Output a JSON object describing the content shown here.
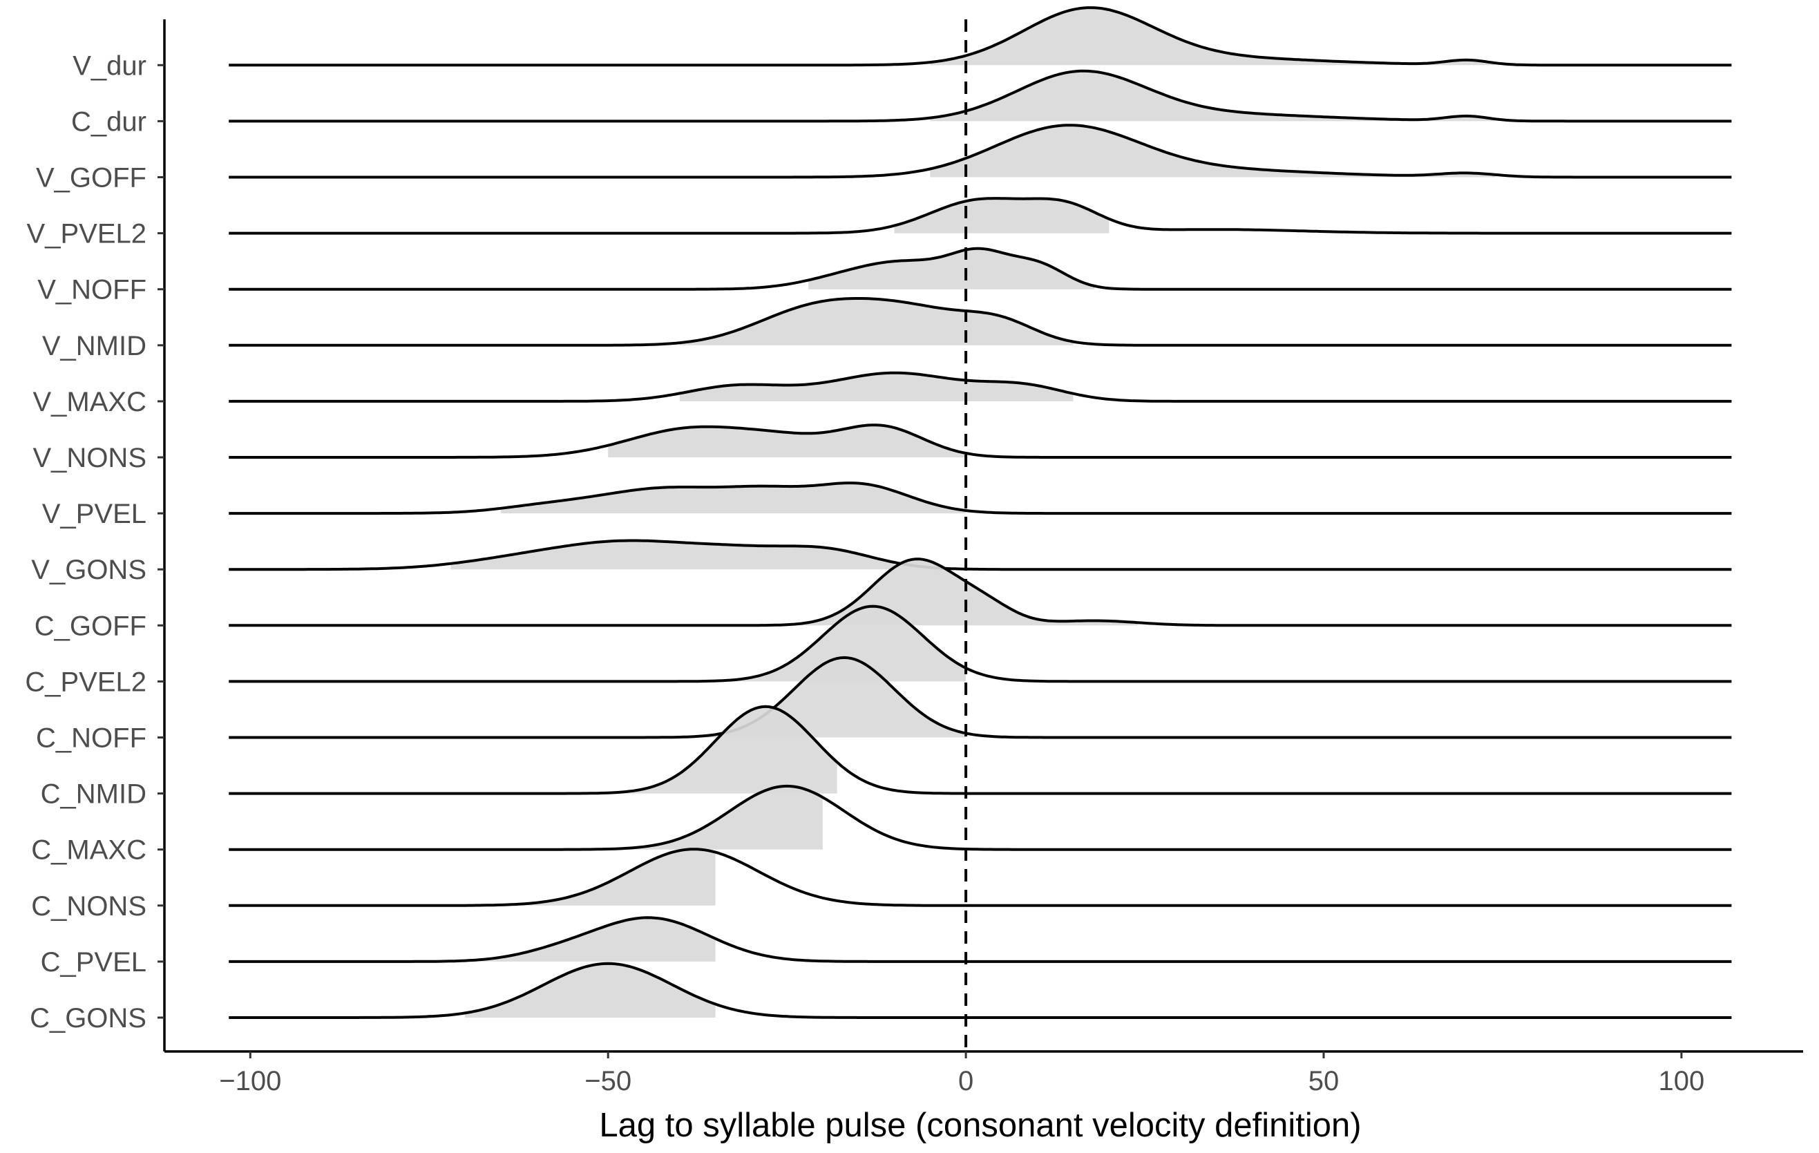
{
  "chart_data": {
    "type": "ridgeline",
    "title": "",
    "xlabel": "Lag to syllable pulse (consonant velocity definition)",
    "ylabel": "",
    "xlim": [
      -112,
      117
    ],
    "x_ticks": [
      -100,
      -50,
      0,
      50,
      100
    ],
    "x_tick_labels": [
      "−100",
      "−50",
      "0",
      "50",
      "100"
    ],
    "reference_line": {
      "x": 0,
      "style": "dashed"
    },
    "grid": false,
    "legend": "none",
    "fill_color": "#d9d9d9",
    "line_color": "#000000",
    "x_range": [
      -103,
      107
    ],
    "categories": [
      "C_GONS",
      "C_PVEL",
      "C_NONS",
      "C_MAXC",
      "C_NMID",
      "C_NOFF",
      "C_PVEL2",
      "C_GOFF",
      "V_GONS",
      "V_PVEL",
      "V_NONS",
      "V_MAXC",
      "V_NMID",
      "V_NOFF",
      "V_PVEL2",
      "V_GOFF",
      "C_dur",
      "V_dur"
    ],
    "series": [
      {
        "name": "C_GONS",
        "fill_range": [
          -70,
          -35
        ],
        "peaks": [
          [
            -50,
            1.15,
            9
          ]
        ]
      },
      {
        "name": "C_PVEL",
        "fill_range": [
          -68,
          -35
        ],
        "peaks": [
          [
            -44,
            0.92,
            8
          ],
          [
            -57,
            0.15,
            6
          ]
        ]
      },
      {
        "name": "C_NONS",
        "fill_range": [
          -62,
          -35
        ],
        "peaks": [
          [
            -38,
            1.2,
            9
          ]
        ]
      },
      {
        "name": "C_MAXC",
        "fill_range": [
          -52,
          -20
        ],
        "peaks": [
          [
            -25,
            1.35,
            8
          ]
        ]
      },
      {
        "name": "C_NMID",
        "fill_range": [
          -48,
          -18
        ],
        "peaks": [
          [
            -28,
            1.85,
            7
          ]
        ]
      },
      {
        "name": "C_NOFF",
        "fill_range": [
          -38,
          0
        ],
        "peaks": [
          [
            -17,
            1.7,
            7
          ]
        ]
      },
      {
        "name": "C_PVEL2",
        "fill_range": [
          -34,
          0
        ],
        "peaks": [
          [
            -13,
            1.6,
            7
          ]
        ]
      },
      {
        "name": "C_GOFF",
        "fill_range": [
          -28,
          24
        ],
        "peaks": [
          [
            -7,
            1.4,
            6
          ],
          [
            3,
            0.3,
            4
          ],
          [
            18,
            0.1,
            6
          ]
        ]
      },
      {
        "name": "V_GONS",
        "fill_range": [
          -72,
          -10
        ],
        "peaks": [
          [
            -47,
            0.6,
            12
          ],
          [
            -20,
            0.4,
            7
          ],
          [
            -32,
            0.15,
            6
          ],
          [
            -65,
            0.08,
            8
          ]
        ]
      },
      {
        "name": "V_PVEL",
        "fill_range": [
          -65,
          0
        ],
        "peaks": [
          [
            -41,
            0.55,
            11
          ],
          [
            -15,
            0.6,
            7
          ],
          [
            -28,
            0.2,
            5
          ],
          [
            -60,
            0.08,
            6
          ]
        ]
      },
      {
        "name": "V_NONS",
        "fill_range": [
          -50,
          0
        ],
        "peaks": [
          [
            -38,
            0.62,
            9
          ],
          [
            -12,
            0.65,
            6
          ],
          [
            -25,
            0.25,
            6
          ]
        ]
      },
      {
        "name": "V_MAXC",
        "fill_range": [
          -40,
          15
        ],
        "peaks": [
          [
            -32,
            0.32,
            7
          ],
          [
            -10,
            0.6,
            9
          ],
          [
            8,
            0.3,
            6
          ]
        ]
      },
      {
        "name": "V_NMID",
        "fill_range": [
          -40,
          15
        ],
        "peaks": [
          [
            -22,
            0.65,
            8
          ],
          [
            -8,
            0.75,
            9
          ],
          [
            5,
            0.35,
            5
          ]
        ]
      },
      {
        "name": "V_NOFF",
        "fill_range": [
          -22,
          18
        ],
        "peaks": [
          [
            -8,
            0.55,
            7
          ],
          [
            2,
            0.6,
            4
          ],
          [
            10,
            0.5,
            4
          ],
          [
            -18,
            0.15,
            6
          ]
        ]
      },
      {
        "name": "V_PVEL2",
        "fill_range": [
          -10,
          20
        ],
        "peaks": [
          [
            2,
            0.7,
            7
          ],
          [
            14,
            0.5,
            5
          ],
          [
            35,
            0.08,
            12
          ]
        ]
      },
      {
        "name": "V_GOFF",
        "fill_range": [
          -5,
          74
        ],
        "peaks": [
          [
            14,
            1.05,
            10
          ],
          [
            35,
            0.15,
            15
          ],
          [
            70,
            0.08,
            4
          ]
        ]
      },
      {
        "name": "C_dur",
        "fill_range": [
          -5,
          74
        ],
        "peaks": [
          [
            16,
            1.0,
            9
          ],
          [
            35,
            0.15,
            15
          ],
          [
            70,
            0.1,
            3
          ]
        ]
      },
      {
        "name": "V_dur",
        "fill_range": [
          -5,
          74
        ],
        "peaks": [
          [
            17,
            1.15,
            9
          ],
          [
            35,
            0.15,
            15
          ],
          [
            70,
            0.1,
            3
          ]
        ]
      }
    ]
  }
}
